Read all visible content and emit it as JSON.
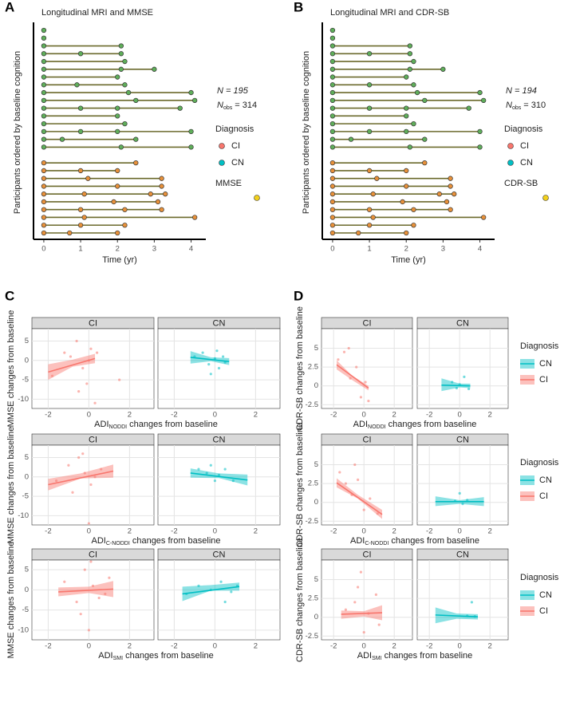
{
  "chart_data": [
    {
      "type": "timeline",
      "panel": "A",
      "title": "Longitudinal MRI and MMSE",
      "ylabel": "Participants ordered by baseline cognition",
      "xlabel": "Time (yr)",
      "xlim": [
        -0.15,
        4.4
      ],
      "xticks": [
        0,
        1,
        2,
        3,
        4
      ],
      "line_color": "#6b6a2c",
      "n_label": "N = 195",
      "nobs": [
        "N",
        "obs",
        " = 314"
      ],
      "legend_title": "Diagnosis",
      "series": [
        {
          "name": "CI",
          "color": "#f8766d"
        },
        {
          "name": "CN",
          "color": "#00bfc4"
        }
      ],
      "marker_legend": {
        "name": "MMSE",
        "color": "#f2d01c"
      },
      "groups": [
        {
          "color": "#5fae5a",
          "participants": [
            [
              0
            ],
            [
              0
            ],
            [
              0,
              2.1
            ],
            [
              0,
              1.0,
              2.1
            ],
            [
              0,
              2.2
            ],
            [
              0,
              2.1,
              3.0
            ],
            [
              0,
              2.0
            ],
            [
              0,
              0.9,
              2.2
            ],
            [
              0,
              2.3,
              4.0
            ],
            [
              0,
              2.5,
              4.1
            ],
            [
              0,
              1.0,
              2.0,
              3.7
            ],
            [
              0,
              2.0
            ],
            [
              0,
              2.2
            ],
            [
              0,
              1.0,
              2.0,
              4.0
            ],
            [
              0,
              0.5,
              2.5
            ],
            [
              0,
              2.1,
              4.0
            ]
          ]
        },
        {
          "color": "#e8913a",
          "participants": [
            [
              0,
              2.5
            ],
            [
              0,
              1.0,
              2.0
            ],
            [
              0,
              1.2,
              3.2
            ],
            [
              0,
              2.0,
              3.2
            ],
            [
              0,
              1.1,
              2.9,
              3.3
            ],
            [
              0,
              1.9,
              3.1
            ],
            [
              0,
              1.0,
              2.2,
              3.2
            ],
            [
              0,
              1.1,
              4.1
            ],
            [
              0,
              1.0,
              2.2
            ],
            [
              0,
              0.7,
              2.0
            ]
          ]
        }
      ]
    },
    {
      "type": "timeline",
      "panel": "B",
      "title": "Longitudinal MRI and CDR-SB",
      "ylabel": "Participants ordered by baseline cognition",
      "xlabel": "Time (yr)",
      "xlim": [
        -0.15,
        4.4
      ],
      "xticks": [
        0,
        1,
        2,
        3,
        4
      ],
      "line_color": "#6b6a2c",
      "n_label": "N = 194",
      "nobs": [
        "N",
        "obs",
        " = 310"
      ],
      "legend_title": "Diagnosis",
      "series": [
        {
          "name": "CI",
          "color": "#f8766d"
        },
        {
          "name": "CN",
          "color": "#00bfc4"
        }
      ],
      "marker_legend": {
        "name": "CDR-SB",
        "color": "#f2d01c"
      },
      "groups": [
        {
          "color": "#5fae5a",
          "participants": [
            [
              0
            ],
            [
              0
            ],
            [
              0,
              2.1
            ],
            [
              0,
              1.0,
              2.1
            ],
            [
              0,
              2.2
            ],
            [
              0,
              2.1,
              3.0
            ],
            [
              0,
              2.0
            ],
            [
              0,
              1.0,
              2.2
            ],
            [
              0,
              2.3,
              4.0
            ],
            [
              0,
              2.5,
              4.1
            ],
            [
              0,
              1.0,
              2.0,
              3.7
            ],
            [
              0,
              2.0
            ],
            [
              0,
              2.2
            ],
            [
              0,
              1.0,
              2.0,
              4.0
            ],
            [
              0,
              0.5,
              2.5
            ],
            [
              0,
              2.1,
              4.0
            ]
          ]
        },
        {
          "color": "#e8913a",
          "participants": [
            [
              0,
              2.5
            ],
            [
              0,
              1.0,
              2.0
            ],
            [
              0,
              1.2,
              3.2
            ],
            [
              0,
              2.0,
              3.2
            ],
            [
              0,
              1.1,
              2.9,
              3.3
            ],
            [
              0,
              1.9,
              3.1
            ],
            [
              0,
              1.0,
              2.2,
              3.2
            ],
            [
              0,
              1.1,
              4.1
            ],
            [
              0,
              1.0,
              2.2
            ],
            [
              0,
              0.7,
              2.0
            ]
          ]
        }
      ]
    },
    {
      "type": "facet_regression",
      "panel": "C",
      "ylabel": "MMSE changes from baseline",
      "xlabel": [
        "ADI",
        "NODDI",
        " changes from baseline"
      ],
      "xlim": [
        -2.8,
        3.2
      ],
      "xticks": [
        -2,
        0,
        2
      ],
      "ylim": [
        -12.4,
        8.2
      ],
      "yticks": [
        -10,
        -5,
        0,
        5
      ],
      "facets": [
        {
          "name": "CI",
          "color": "#f8766d",
          "points_x": [
            -1.8,
            -1.2,
            -0.6,
            -0.3,
            0,
            0.1,
            0.3,
            -0.9,
            -0.1,
            0.4,
            1.5,
            -0.5
          ],
          "points_y": [
            -4,
            2,
            5,
            -2,
            0,
            3,
            -11,
            1,
            -6,
            2,
            -5,
            -8
          ],
          "fit_x": [
            -2,
            0.3
          ],
          "fit_y": [
            -3,
            0.5
          ],
          "band_x": [
            -2,
            -0.8,
            0.3
          ],
          "band_lower": [
            -5,
            -1.6,
            -0.7
          ],
          "band_upper": [
            -1,
            0.2,
            1.7
          ]
        },
        {
          "name": "CN",
          "color": "#00bfc4",
          "points_x": [
            -1.0,
            -0.6,
            -0.3,
            0,
            0.2,
            0.4,
            0.5,
            -0.2,
            0.1
          ],
          "points_y": [
            1,
            2,
            -1,
            0.5,
            -2,
            1,
            -0.5,
            -3.5,
            2.5
          ],
          "fit_x": [
            -1.2,
            0.7
          ],
          "fit_y": [
            0.8,
            -0.3
          ],
          "band_x": [
            -1.2,
            -0.2,
            0.7
          ],
          "band_lower": [
            -0.8,
            -0.2,
            -1.2
          ],
          "band_upper": [
            2.4,
            0.8,
            0.6
          ]
        }
      ]
    },
    {
      "type": "facet_regression",
      "ylabel": "MMSE changes from baseline",
      "xlabel": [
        "ADI",
        "C-NODDI",
        " changes from baseline"
      ],
      "xlim": [
        -2.8,
        3.2
      ],
      "xticks": [
        -2,
        0,
        2
      ],
      "ylim": [
        -12.4,
        8.2
      ],
      "yticks": [
        -10,
        -5,
        0,
        5
      ],
      "facets": [
        {
          "name": "CI",
          "color": "#f8766d",
          "points_x": [
            -1.6,
            -1.0,
            -0.5,
            -0.2,
            0,
            0.3,
            0.6,
            -0.8,
            -0.3,
            0.1
          ],
          "points_y": [
            -1,
            3,
            5,
            1,
            -12,
            0,
            2,
            -4,
            6,
            -2
          ],
          "fit_x": [
            -2,
            1.2
          ],
          "fit_y": [
            -2,
            1.5
          ],
          "band_x": [
            -2,
            -0.4,
            1.2
          ],
          "band_lower": [
            -3.5,
            -0.4,
            -0.2
          ],
          "band_upper": [
            -0.5,
            0.9,
            3.2
          ]
        },
        {
          "name": "CN",
          "color": "#00bfc4",
          "points_x": [
            -0.8,
            -0.4,
            0,
            0.2,
            0.5,
            0.9,
            -0.2
          ],
          "points_y": [
            2,
            1,
            -1,
            0.5,
            2,
            -1,
            3
          ],
          "fit_x": [
            -1.2,
            1.6
          ],
          "fit_y": [
            1,
            -0.8
          ],
          "band_x": [
            -1.2,
            0.2,
            1.6
          ],
          "band_lower": [
            -0.2,
            -0.3,
            -2.2
          ],
          "band_upper": [
            2.2,
            0.9,
            0.6
          ]
        }
      ]
    },
    {
      "type": "facet_regression",
      "ylabel": "MMSE changes from baseline",
      "xlabel": [
        "ADI",
        "SMI",
        " changes from baseline"
      ],
      "xlim": [
        -2.8,
        3.2
      ],
      "xticks": [
        -2,
        0,
        2
      ],
      "ylim": [
        -12.4,
        7.4
      ],
      "yticks": [
        -10,
        -5,
        0,
        5
      ],
      "facets": [
        {
          "name": "CI",
          "color": "#f8766d",
          "points_x": [
            -1.2,
            -0.6,
            -0.2,
            0,
            0.2,
            0.5,
            1.0,
            -0.4,
            0.1,
            0.8
          ],
          "points_y": [
            2,
            -3,
            5,
            -10,
            1,
            -2,
            3,
            -6,
            7,
            -1
          ],
          "fit_x": [
            -1.5,
            1.2
          ],
          "fit_y": [
            -0.5,
            0.2
          ],
          "band_x": [
            -1.5,
            0,
            1.2
          ],
          "band_lower": [
            -1.6,
            -0.8,
            -1.8
          ],
          "band_upper": [
            0.6,
            0.8,
            2.2
          ]
        },
        {
          "name": "CN",
          "color": "#00bfc4",
          "points_x": [
            -1.4,
            -0.8,
            -0.2,
            0.3,
            0.8,
            1.1,
            0.5
          ],
          "points_y": [
            -1,
            1,
            0,
            2,
            -0.5,
            1,
            -3
          ],
          "fit_x": [
            -1.6,
            1.2
          ],
          "fit_y": [
            -1,
            0.8
          ],
          "band_x": [
            -1.6,
            -0.2,
            1.2
          ],
          "band_lower": [
            -2.8,
            -0.2,
            -0.2
          ],
          "band_upper": [
            0.8,
            1.2,
            1.8
          ]
        }
      ]
    },
    {
      "type": "facet_regression",
      "panel": "D",
      "ylabel": "CDR-SB changes from baseline",
      "xlabel": [
        "ADI",
        "NODDI",
        " changes from baseline"
      ],
      "xlim": [
        -2.8,
        3.2
      ],
      "xticks": [
        -2,
        0,
        2
      ],
      "ylim": [
        -3,
        7.6
      ],
      "yticks": [
        -2.5,
        0,
        2.5,
        5
      ],
      "legend_title": "Diagnosis",
      "facets": [
        {
          "name": "CI",
          "color": "#f8766d",
          "points_x": [
            -1.7,
            -1.3,
            -0.9,
            -0.5,
            -0.2,
            0.1,
            0.3,
            -1.0
          ],
          "points_y": [
            3.5,
            4.5,
            1,
            2.5,
            -1.5,
            0.5,
            -2,
            5
          ],
          "fit_x": [
            -1.8,
            0.3
          ],
          "fit_y": [
            2.8,
            -0.3
          ],
          "band_x": [
            -1.8,
            -0.8,
            0.3
          ],
          "band_lower": [
            2.2,
            0.8,
            -0.6
          ],
          "band_upper": [
            3.4,
            1.4,
            0
          ]
        },
        {
          "name": "CN",
          "color": "#00bfc4",
          "points_x": [
            -0.5,
            -0.2,
            0,
            0.3,
            0.6
          ],
          "points_y": [
            0.5,
            -0.3,
            0.2,
            1.2,
            -0.4
          ],
          "fit_x": [
            -1.2,
            0.7
          ],
          "fit_y": [
            0.1,
            0
          ],
          "band_x": [
            -1.2,
            0,
            0.7
          ],
          "band_lower": [
            -0.7,
            -0.2,
            -0.3
          ],
          "band_upper": [
            1.0,
            0.3,
            0.3
          ]
        }
      ]
    },
    {
      "type": "facet_regression",
      "ylabel": "CDR-SB changes from baseline",
      "xlabel": [
        "ADI",
        "C-NODDI",
        " changes from baseline"
      ],
      "xlim": [
        -2.8,
        3.2
      ],
      "xticks": [
        -2,
        0,
        2
      ],
      "ylim": [
        -3,
        7.6
      ],
      "yticks": [
        -2.5,
        0,
        2.5,
        5
      ],
      "legend_title": "Diagnosis",
      "facets": [
        {
          "name": "CI",
          "color": "#f8766d",
          "points_x": [
            -1.6,
            -1.2,
            -0.8,
            -0.4,
            0,
            0.4,
            0.9,
            -0.6
          ],
          "points_y": [
            4,
            2.5,
            1,
            3,
            -1,
            0.5,
            -1.5,
            5
          ],
          "fit_x": [
            -1.8,
            1.2
          ],
          "fit_y": [
            2.6,
            -1.6
          ],
          "band_x": [
            -1.8,
            -0.4,
            1.2
          ],
          "band_lower": [
            2.0,
            0.5,
            -2.2
          ],
          "band_upper": [
            3.2,
            1.0,
            -1.0
          ]
        },
        {
          "name": "CN",
          "color": "#00bfc4",
          "points_x": [
            -0.3,
            0,
            0.2,
            0.5
          ],
          "points_y": [
            0.2,
            1.2,
            -0.2,
            0.3
          ],
          "fit_x": [
            -1.6,
            1.6
          ],
          "fit_y": [
            0.1,
            0.1
          ],
          "band_x": [
            -1.6,
            0,
            1.6
          ],
          "band_lower": [
            -0.5,
            -0.2,
            -0.5
          ],
          "band_upper": [
            0.8,
            0.3,
            0.7
          ]
        }
      ]
    },
    {
      "type": "facet_regression",
      "ylabel": "CDR-SB changes from baseline",
      "xlabel": [
        "ADI",
        "SMI",
        " changes from baseline"
      ],
      "xlim": [
        -2.8,
        3.2
      ],
      "xticks": [
        -2,
        0,
        2
      ],
      "ylim": [
        -3,
        7.6
      ],
      "yticks": [
        -2.5,
        0,
        2.5,
        5
      ],
      "legend_title": "Diagnosis",
      "facets": [
        {
          "name": "CI",
          "color": "#f8766d",
          "points_x": [
            -1.2,
            -0.6,
            -0.2,
            0,
            0.3,
            0.8,
            1.0,
            -0.4
          ],
          "points_y": [
            1,
            2,
            6,
            -2,
            0.5,
            3,
            -1,
            4
          ],
          "fit_x": [
            -1.5,
            1.2
          ],
          "fit_y": [
            0.4,
            0.6
          ],
          "band_x": [
            -1.5,
            0,
            1.2
          ],
          "band_lower": [
            -0.2,
            0.1,
            -0.4
          ],
          "band_upper": [
            0.9,
            0.8,
            1.6
          ]
        },
        {
          "name": "CN",
          "color": "#00bfc4",
          "points_x": [
            0.5,
            0.8,
            1.0
          ],
          "points_y": [
            0.2,
            2,
            0.1
          ],
          "fit_x": [
            -1.6,
            1.2
          ],
          "fit_y": [
            0.3,
            0.05
          ],
          "band_x": [
            -1.6,
            -0.2,
            1.2
          ],
          "band_lower": [
            -0.8,
            -0.2,
            -0.3
          ],
          "band_upper": [
            1.3,
            0.5,
            0.4
          ]
        }
      ]
    }
  ]
}
